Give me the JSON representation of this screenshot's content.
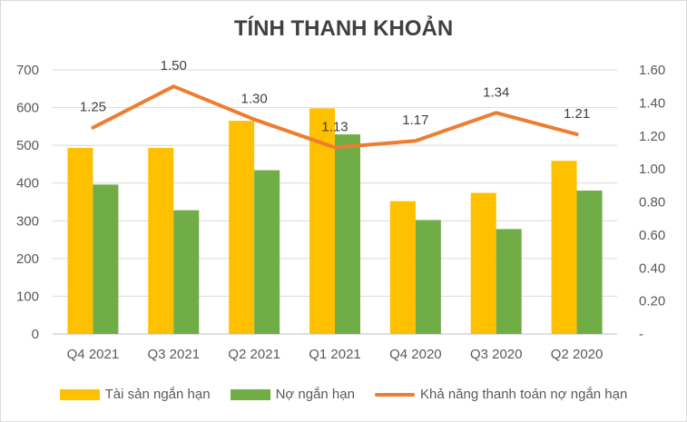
{
  "colors": {
    "series1": "#FFC000",
    "series2": "#70AD47",
    "line": "#ED7D31",
    "grid": "#d9d9d9",
    "axis": "#bfbfbf"
  },
  "chart_data": {
    "type": "bar",
    "title": "TÍNH THANH KHOẢN",
    "categories": [
      "Q4 2021",
      "Q3 2021",
      "Q2 2021",
      "Q1 2021",
      "Q4 2020",
      "Q3 2020",
      "Q2 2020"
    ],
    "series": [
      {
        "name": "Tài sản ngắn hạn",
        "type": "bar",
        "axis": "left",
        "values": [
          493,
          493,
          565,
          598,
          352,
          374,
          459
        ]
      },
      {
        "name": "Nợ ngắn hạn",
        "type": "bar",
        "axis": "left",
        "values": [
          396,
          328,
          434,
          529,
          302,
          278,
          380
        ]
      },
      {
        "name": "Khả năng thanh toán nợ ngắn hạn",
        "type": "line",
        "axis": "right",
        "values": [
          1.25,
          1.5,
          1.3,
          1.13,
          1.17,
          1.34,
          1.21
        ],
        "labels": [
          "1.25",
          "1.50",
          "1.30",
          "1.13",
          "1.17",
          "1.34",
          "1.21"
        ]
      }
    ],
    "ylim_left": [
      0,
      700
    ],
    "yticks_left": [
      "0",
      "100",
      "200",
      "300",
      "400",
      "500",
      "600",
      "700"
    ],
    "ylim_right": [
      0,
      1.6
    ],
    "yticks_right": [
      "-",
      "0.20",
      "0.40",
      "0.60",
      "0.80",
      "1.00",
      "1.20",
      "1.40",
      "1.60"
    ],
    "grid": true,
    "legend": "bottom"
  }
}
